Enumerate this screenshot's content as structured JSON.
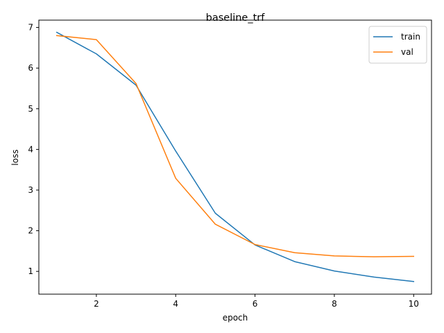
{
  "chart_data": {
    "type": "line",
    "title": "baseline_trf",
    "xlabel": "epoch",
    "ylabel": "loss",
    "xlim": [
      0.55,
      10.45
    ],
    "ylim": [
      0.44,
      7.18
    ],
    "xticks": [
      2,
      4,
      6,
      8,
      10
    ],
    "yticks": [
      1,
      2,
      3,
      4,
      5,
      6,
      7
    ],
    "grid": false,
    "legend_position": "top-right",
    "x": [
      1,
      2,
      3,
      4,
      5,
      6,
      7,
      8,
      9,
      10
    ],
    "series": [
      {
        "name": "train",
        "color": "#1f77b4",
        "values": [
          6.88,
          6.35,
          5.58,
          3.96,
          2.43,
          1.65,
          1.24,
          1.01,
          0.86,
          0.75
        ]
      },
      {
        "name": "val",
        "color": "#ff7f0e",
        "values": [
          6.8,
          6.7,
          5.62,
          3.29,
          2.16,
          1.66,
          1.46,
          1.38,
          1.36,
          1.37
        ]
      }
    ]
  }
}
